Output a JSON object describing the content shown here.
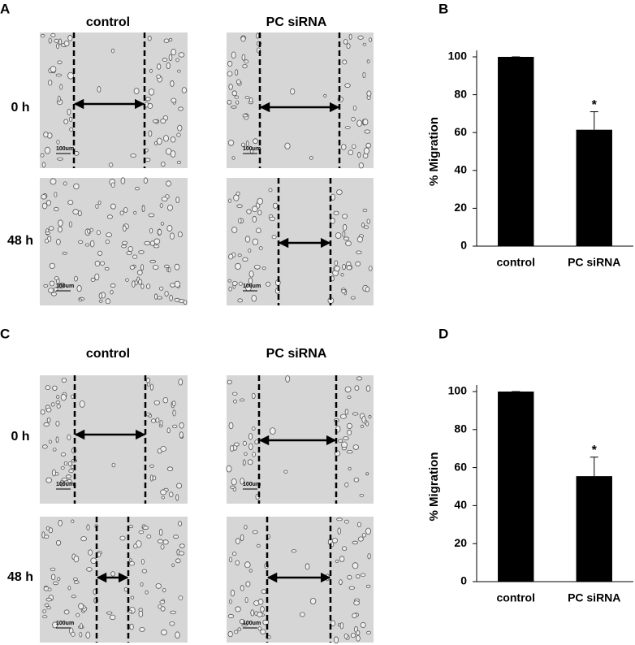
{
  "image_panels": [
    {
      "label": "A",
      "columns": [
        "control",
        "PC siRNA"
      ],
      "rows": [
        "0 h",
        "48 h"
      ],
      "scale_bar": "100um"
    },
    {
      "label": "C",
      "columns": [
        "control",
        "PC siRNA"
      ],
      "rows": [
        "0 h",
        "48 h"
      ],
      "scale_bar": "100um"
    }
  ],
  "chart_data": [
    {
      "type": "bar",
      "label": "B",
      "ylabel": "% Migration",
      "categories": [
        "control",
        "PC siRNA"
      ],
      "values": [
        100,
        61.5
      ],
      "errors": [
        0,
        9.5
      ],
      "significance": [
        null,
        "*"
      ],
      "color": "#000000",
      "ylim": [
        0,
        100
      ],
      "yticks": [
        0,
        20,
        40,
        60,
        80,
        100
      ]
    },
    {
      "type": "bar",
      "label": "D",
      "ylabel": "% Migration",
      "categories": [
        "control",
        "PC siRNA"
      ],
      "values": [
        100,
        55.5
      ],
      "errors": [
        0,
        10
      ],
      "significance": [
        null,
        "*"
      ],
      "color": "#000000",
      "ylim": [
        0,
        100
      ],
      "yticks": [
        0,
        20,
        40,
        60,
        80,
        100
      ]
    }
  ]
}
